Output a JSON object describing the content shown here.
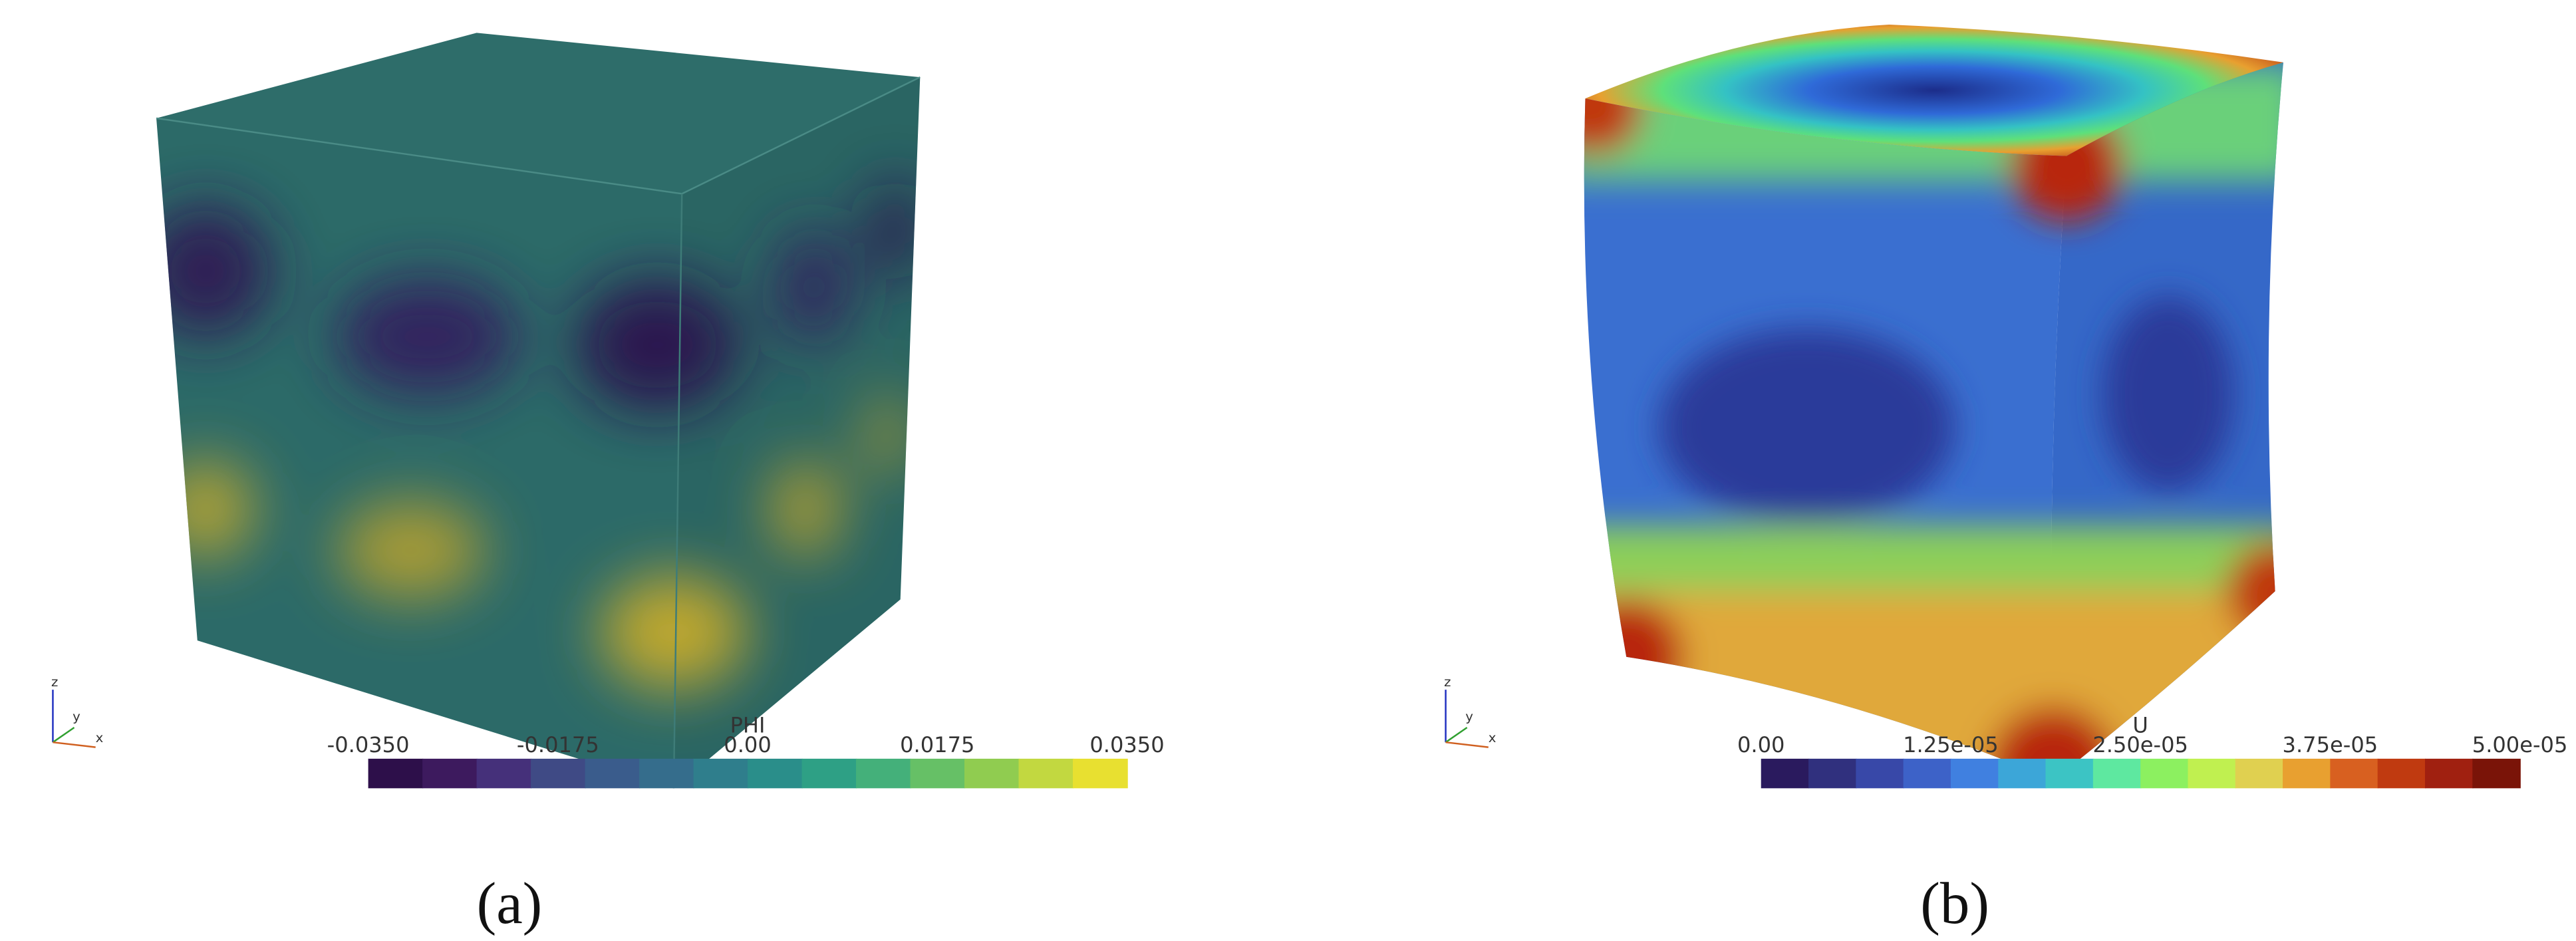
{
  "panels": [
    {
      "axis_labels": [
        "z",
        "y",
        "x"
      ],
      "colorbar": {
        "title": "PHI",
        "ticks": [
          "-0.0350",
          "-0.0175",
          "0.00",
          "0.0175",
          "0.0350"
        ]
      },
      "caption": "(a)"
    },
    {
      "axis_labels": [
        "z",
        "y",
        "x"
      ],
      "colorbar": {
        "title": "U",
        "ticks": [
          "0.00",
          "1.25e-05",
          "2.50e-05",
          "3.75e-05",
          "5.00e-05"
        ]
      },
      "caption": "(b)"
    }
  ]
}
